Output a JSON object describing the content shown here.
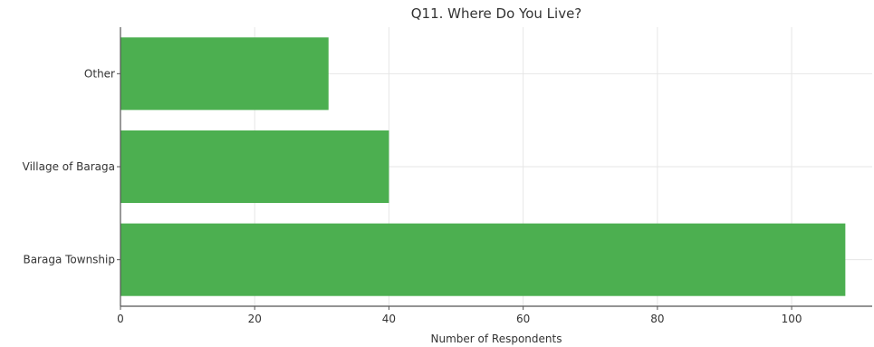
{
  "chart_data": {
    "type": "bar",
    "orientation": "horizontal",
    "title": "Q11. Where Do You Live?",
    "xlabel": "Number of Respondents",
    "ylabel": "",
    "categories": [
      "Baraga Township",
      "Village of Baraga",
      "Other"
    ],
    "values": [
      108,
      40,
      31
    ],
    "xlim": [
      0,
      112
    ],
    "xticks": [
      0,
      20,
      40,
      60,
      80,
      100
    ],
    "grid": true,
    "color": "#4caf50"
  }
}
